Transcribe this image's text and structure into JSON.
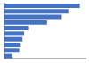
{
  "chart_data": {
    "type": "bar",
    "orientation": "horizontal",
    "categories": [
      null,
      null,
      null,
      null,
      null,
      null,
      null,
      null,
      null,
      null
    ],
    "values": [
      92,
      78,
      70,
      52,
      30,
      24,
      22,
      20,
      18,
      10
    ],
    "color": "#4472c4",
    "xlim": [
      0,
      100
    ],
    "grid": false,
    "tick_labels": false
  }
}
